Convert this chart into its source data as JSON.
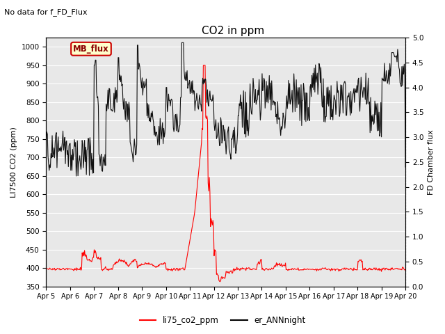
{
  "title": "CO2 in ppm",
  "top_left_text": "No data for f_FD_Flux",
  "ylabel_left": "LI7500 CO2 (ppm)",
  "ylabel_right": "FD Chamber flux",
  "ylim_left": [
    350,
    1025
  ],
  "ylim_right": [
    0.0,
    5.0
  ],
  "yticks_left": [
    350,
    400,
    450,
    500,
    550,
    600,
    650,
    700,
    750,
    800,
    850,
    900,
    950,
    1000
  ],
  "yticks_right": [
    0.0,
    0.5,
    1.0,
    1.5,
    2.0,
    2.5,
    3.0,
    3.5,
    4.0,
    4.5,
    5.0
  ],
  "xlabel_dates": [
    "Apr 5",
    "Apr 6",
    "Apr 7",
    "Apr 8",
    "Apr 9",
    "Apr 10",
    "Apr 11",
    "Apr 12",
    "Apr 13",
    "Apr 14",
    "Apr 15",
    "Apr 16",
    "Apr 17",
    "Apr 18",
    "Apr 19",
    "Apr 20"
  ],
  "legend_entries": [
    "li75_co2_ppm",
    "er_ANNnight"
  ],
  "legend_colors": [
    "red",
    "black"
  ],
  "mb_flux_label": "MB_flux",
  "mb_flux_box_color": "#FFFFCC",
  "mb_flux_border_color": "#CC0000",
  "background_color": "#E8E8E8",
  "grid_color": "white",
  "line_color_red": "#FF0000",
  "line_color_black": "#111111"
}
